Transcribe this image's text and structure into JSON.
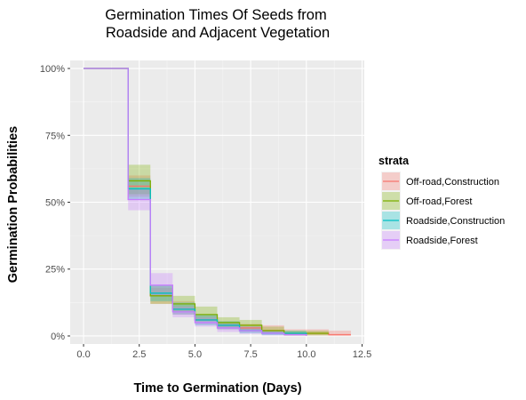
{
  "chart_data": {
    "type": "line",
    "subtype": "step-survival",
    "title_lines": [
      "Germination Times Of Seeds from",
      "Roadside and Adjacent Vegetation"
    ],
    "xlabel": "Time to Germination (Days)",
    "ylabel": "Germination Probabilities",
    "xlim": [
      -0.6,
      12.6
    ],
    "ylim": [
      -0.03,
      1.03
    ],
    "x_ticks": [
      0,
      2.5,
      5,
      7.5,
      10,
      12.5
    ],
    "x_tick_labels": [
      "0.0",
      "2.5",
      "5.0",
      "7.5",
      "10.0",
      "12.5"
    ],
    "y_ticks": [
      0,
      0.25,
      0.5,
      0.75,
      1.0
    ],
    "y_tick_labels": [
      "0%",
      "25%",
      "50%",
      "75%",
      "100%"
    ],
    "grid": true,
    "legend_title": "strata",
    "legend_position": "right",
    "series": [
      {
        "name": "Off-road,Construction",
        "color": "#F8766D",
        "x": [
          0,
          2,
          3,
          4,
          5,
          6,
          7,
          8,
          9,
          11,
          12
        ],
        "y": [
          1.0,
          0.56,
          0.15,
          0.1,
          0.06,
          0.04,
          0.03,
          0.02,
          0.01,
          0.005,
          0.005
        ],
        "lower": [
          1.0,
          0.52,
          0.12,
          0.08,
          0.045,
          0.025,
          0.015,
          0.01,
          0.002,
          0.0,
          0.0
        ],
        "upper": [
          1.0,
          0.6,
          0.18,
          0.13,
          0.08,
          0.055,
          0.045,
          0.04,
          0.025,
          0.02,
          0.02
        ]
      },
      {
        "name": "Off-road,Forest",
        "color": "#7CAE00",
        "x": [
          0,
          2,
          3,
          4,
          5,
          6,
          7,
          8,
          9,
          11
        ],
        "y": [
          1.0,
          0.58,
          0.15,
          0.12,
          0.08,
          0.05,
          0.04,
          0.02,
          0.01,
          0.01
        ],
        "lower": [
          1.0,
          0.53,
          0.12,
          0.09,
          0.055,
          0.03,
          0.02,
          0.01,
          0.002,
          0.002
        ],
        "upper": [
          1.0,
          0.64,
          0.19,
          0.15,
          0.11,
          0.07,
          0.06,
          0.035,
          0.02,
          0.02
        ]
      },
      {
        "name": "Roadside,Construction",
        "color": "#00BFC4",
        "x": [
          0,
          2,
          3,
          4,
          5,
          6,
          7,
          8,
          9,
          10
        ],
        "y": [
          1.0,
          0.55,
          0.16,
          0.1,
          0.06,
          0.04,
          0.02,
          0.01,
          0.01,
          0.005
        ],
        "lower": [
          1.0,
          0.51,
          0.13,
          0.08,
          0.04,
          0.025,
          0.01,
          0.003,
          0.003,
          0.0
        ],
        "upper": [
          1.0,
          0.59,
          0.19,
          0.125,
          0.08,
          0.055,
          0.035,
          0.02,
          0.02,
          0.015
        ]
      },
      {
        "name": "Roadside,Forest",
        "color": "#C77CFF",
        "x": [
          0,
          2,
          3,
          4,
          5,
          6,
          7,
          8,
          9,
          10
        ],
        "y": [
          1.0,
          0.51,
          0.19,
          0.09,
          0.05,
          0.03,
          0.02,
          0.01,
          0.005,
          0.0
        ],
        "lower": [
          1.0,
          0.47,
          0.15,
          0.07,
          0.035,
          0.015,
          0.008,
          0.002,
          0.0,
          0.0
        ],
        "upper": [
          1.0,
          0.55,
          0.235,
          0.11,
          0.07,
          0.045,
          0.035,
          0.02,
          0.012,
          0.005
        ]
      }
    ]
  }
}
